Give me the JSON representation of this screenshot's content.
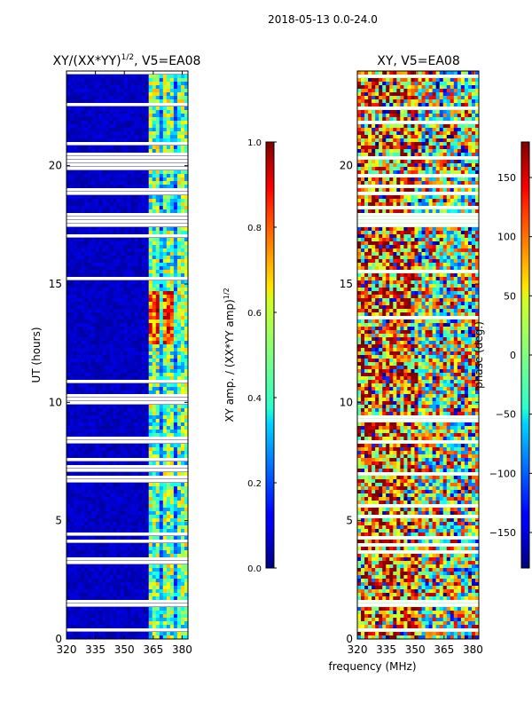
{
  "figure": {
    "suptitle": "2018-05-13 0.0-24.0",
    "xlabel": "frequency (MHz)",
    "colormap": "jet"
  },
  "chart_data": [
    {
      "type": "heatmap",
      "title_main": "XY/(XX*YY)",
      "title_exp": "1/2",
      "title_suffix": ", V5=EA08",
      "xlabel": "",
      "ylabel": "UT (hours)",
      "xlim": [
        320,
        383
      ],
      "ylim": [
        0,
        24
      ],
      "xticks": [
        320,
        335,
        350,
        365,
        380
      ],
      "yticks": [
        0,
        5,
        10,
        15,
        20
      ],
      "colorbar": {
        "label_main": "XY amp. / (XX*YY amp)",
        "label_exp": "1/2",
        "range": [
          0.0,
          1.0
        ],
        "ticks": [
          "0.0",
          "0.2",
          "0.4",
          "0.6",
          "0.8",
          "1.0"
        ],
        "tick_values": [
          0.0,
          0.2,
          0.4,
          0.6,
          0.8,
          1.0
        ]
      },
      "data_gaps_hours": [
        [
          0.35,
          0.45
        ],
        [
          1.42,
          1.62
        ],
        [
          17.55,
          18.05
        ],
        [
          20.25,
          20.45
        ],
        [
          8.25,
          8.45
        ]
      ]
    },
    {
      "type": "heatmap",
      "title_main": "XY, V5=EA08",
      "xlabel": "",
      "ylabel": "",
      "xlim": [
        320,
        383
      ],
      "ylim": [
        0,
        24
      ],
      "xticks": [
        320,
        335,
        350,
        365,
        380
      ],
      "yticks": [
        0,
        5,
        10,
        15,
        20
      ],
      "colorbar": {
        "label_main": "phase (deg.)",
        "range": [
          -180,
          180
        ],
        "ticks": [
          "150",
          "100",
          "50",
          "0",
          "−50",
          "−100",
          "−150"
        ],
        "tick_values": [
          150,
          100,
          50,
          0,
          -50,
          -100,
          -150
        ]
      },
      "data_gaps_hours": [
        [
          0.35,
          0.45
        ],
        [
          1.42,
          1.62
        ],
        [
          17.55,
          18.05
        ],
        [
          20.25,
          20.45
        ],
        [
          8.25,
          8.45
        ]
      ]
    }
  ]
}
